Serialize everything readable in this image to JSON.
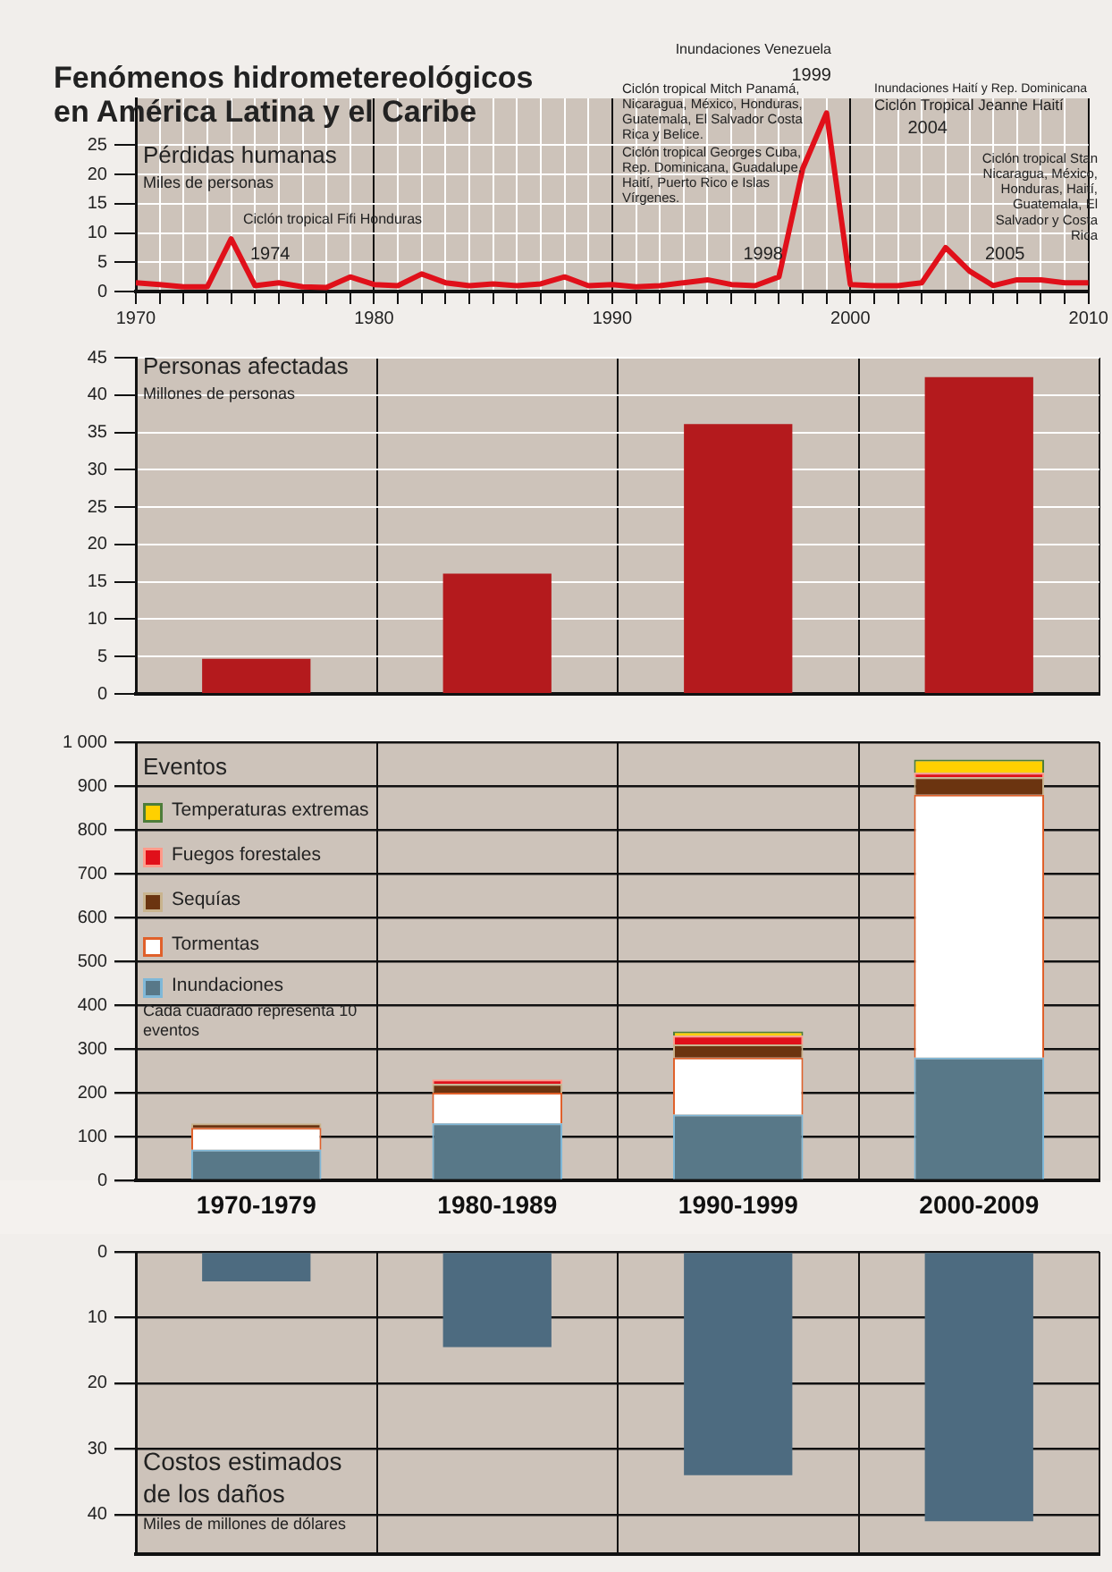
{
  "chart_data": [
    {
      "type": "line",
      "title": "Fenómenos hidrometereológicos en América Latina y el Caribe",
      "subtitle": "Pérdidas humanas",
      "ylabel": "Miles de personas",
      "color": "#e0101a",
      "x": [
        1970,
        1971,
        1972,
        1973,
        1974,
        1975,
        1976,
        1977,
        1978,
        1979,
        1980,
        1981,
        1982,
        1983,
        1984,
        1985,
        1986,
        1987,
        1988,
        1989,
        1990,
        1991,
        1992,
        1993,
        1994,
        1995,
        1996,
        1997,
        1998,
        1999,
        2000,
        2001,
        2002,
        2003,
        2004,
        2005,
        2006,
        2007,
        2008,
        2009,
        2010
      ],
      "values": [
        1.5,
        1.2,
        0.8,
        0.8,
        9,
        1,
        1.5,
        0.8,
        0.7,
        2.5,
        1.2,
        1,
        3,
        1.5,
        1,
        1.3,
        1,
        1.3,
        2.5,
        1,
        1.2,
        0.8,
        1,
        1.5,
        2,
        1.2,
        1,
        2.5,
        21,
        30.5,
        1.2,
        1,
        1,
        1.5,
        7.5,
        3.5,
        1,
        2,
        2,
        1.5,
        1.5
      ],
      "xlim": [
        1970,
        2010
      ],
      "ylim": [
        0,
        33
      ],
      "xticks": [
        1970,
        {
          "value": 1971,
          "label": null
        },
        {
          "value": 1972,
          "label": null
        },
        {
          "value": 1973,
          "label": null
        },
        {
          "value": 1974,
          "label": null
        },
        {
          "value": 1975,
          "label": null
        },
        {
          "value": 1976,
          "label": null
        },
        {
          "value": 1977,
          "label": null
        },
        {
          "value": 1978,
          "label": null
        },
        {
          "value": 1979,
          "label": null
        },
        1980,
        {
          "value": 1981,
          "label": null
        },
        {
          "value": 1982,
          "label": null
        },
        {
          "value": 1983,
          "label": null
        },
        {
          "value": 1984,
          "label": null
        },
        {
          "value": 1985,
          "label": null
        },
        {
          "value": 1986,
          "label": null
        },
        {
          "value": 1987,
          "label": null
        },
        {
          "value": 1988,
          "label": null
        },
        {
          "value": 1989,
          "label": null
        },
        1990,
        {
          "value": 1991,
          "label": null
        },
        {
          "value": 1992,
          "label": null
        },
        {
          "value": 1993,
          "label": null
        },
        {
          "value": 1994,
          "label": null
        },
        {
          "value": 1995,
          "label": null
        },
        {
          "value": 1996,
          "label": null
        },
        {
          "value": 1997,
          "label": null
        },
        {
          "value": 1998,
          "label": null
        },
        {
          "value": 1999,
          "label": null
        },
        2000,
        {
          "value": 2001,
          "label": null
        },
        {
          "value": 2002,
          "label": null
        },
        {
          "value": 2003,
          "label": null
        },
        {
          "value": 2004,
          "label": null
        },
        {
          "value": 2005,
          "label": null
        },
        {
          "value": 2006,
          "label": null
        },
        {
          "value": 2007,
          "label": null
        },
        {
          "value": 2008,
          "label": null
        },
        {
          "value": 2009,
          "label": null
        },
        2010
      ],
      "yticks": [
        0,
        5,
        10,
        15,
        20,
        25
      ],
      "grid": true,
      "annotations": [
        "Ciclón tropical Fifi Honduras",
        "1974",
        "Ciclón tropical Mitch Panamá, Nicaragua, México, Honduras, Guatemala, El Salvador Costa Rica y Belice.",
        "Ciclón tropical Georges Cuba, Rep. Dominicana, Guadalupe, Haití, Puerto Rico e Islas Vírgenes.",
        "1998",
        "Inundaciones Venezuela",
        "1999",
        "Inundaciones Haití y Rep. Dominicana",
        "Ciclón Tropical Jeanne Haití",
        "2004",
        "Ciclón tropical Stan Nicaragua, México, Honduras, Haití, Guatemala, El Salvador y Costa Rica",
        "2005"
      ]
    },
    {
      "type": "bar",
      "title": "Personas afectadas",
      "ylabel": "Millones de personas",
      "categories": [
        null,
        null,
        null,
        null
      ],
      "values": [
        4.7,
        16.1,
        36.1,
        42.4
      ],
      "color": "#b41a1d",
      "ylim": [
        0,
        45
      ],
      "yticks": [
        0,
        5,
        10,
        15,
        20,
        25,
        30,
        35,
        40,
        45
      ],
      "grid": true,
      "tick_labels": "y"
    },
    {
      "type": "bar",
      "title": "Eventos",
      "stacked": true,
      "legend": "top left",
      "categories": [
        "1970-1979",
        "1980-1989",
        "1990-1999",
        "2000-2009"
      ],
      "series": [
        {
          "name": "Inundaciones",
          "color": "#587888",
          "values": [
            70,
            130,
            150,
            280
          ]
        },
        {
          "name": "Tormentas",
          "color": "#ffffff",
          "values": [
            50,
            70,
            130,
            600
          ]
        },
        {
          "name": "Sequías",
          "color": "#6b3410",
          "values": [
            10,
            20,
            30,
            40
          ]
        },
        {
          "name": "Fuegos forestales",
          "color": "#e0101a",
          "values": [
            null,
            10,
            20,
            10
          ]
        },
        {
          "name": "Temperaturas extremas",
          "color": "#ffd000",
          "values": [
            null,
            null,
            10,
            30
          ]
        }
      ],
      "ylim": [
        0,
        1000
      ],
      "yticks": [
        0,
        100,
        200,
        300,
        400,
        500,
        600,
        700,
        800,
        900,
        {
          "value": 1000,
          "label": "1 000"
        }
      ],
      "grid": true,
      "annotations": [
        "Cada cuadrado representa 10 eventos"
      ]
    },
    {
      "type": "bar",
      "title": "Costos estimados de los daños",
      "ylabel": "Miles de millones de dólares",
      "categories": [
        null,
        null,
        null,
        null
      ],
      "values": [
        4.5,
        14.5,
        34,
        41
      ],
      "color": "#4d6b80",
      "ylim": [
        46,
        0
      ],
      "yticks": [
        0,
        10,
        20,
        30,
        40
      ],
      "grid": true,
      "tick_labels": "y"
    }
  ]
}
